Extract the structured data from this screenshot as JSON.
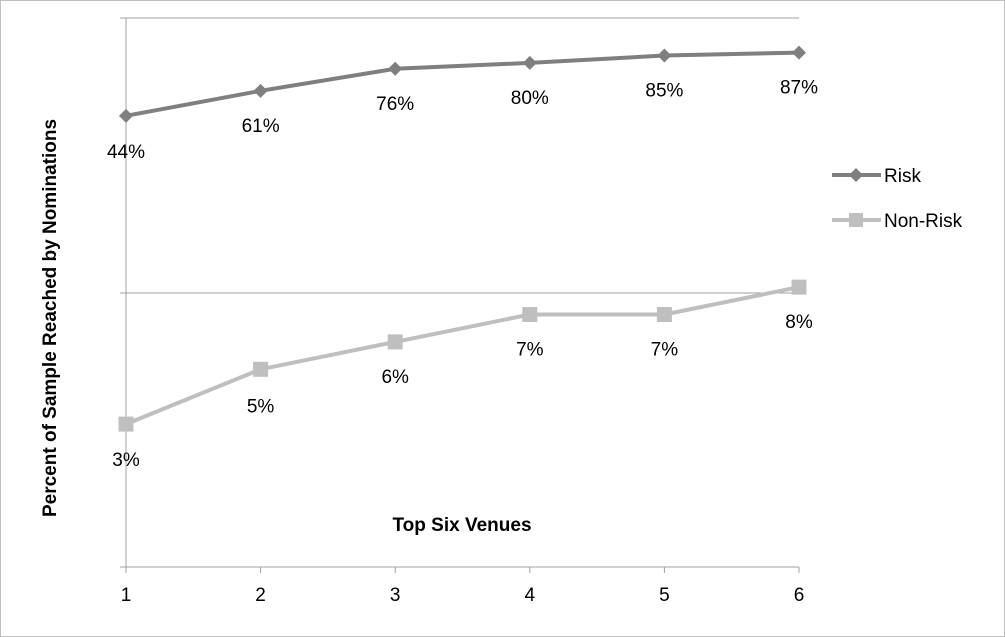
{
  "chart_data": {
    "type": "line",
    "title": "",
    "xlabel": "Top Six Venues",
    "ylabel": "Percent of Sample Reached by Nominations",
    "categories": [
      "1",
      "2",
      "3",
      "4",
      "5",
      "6"
    ],
    "series": [
      {
        "name": "Risk",
        "values": [
          44,
          61,
          76,
          80,
          85,
          87
        ],
        "labels": [
          "44%",
          "61%",
          "76%",
          "80%",
          "85%",
          "87%"
        ],
        "color": "#7f7f7f",
        "marker": "diamond"
      },
      {
        "name": "Non-Risk",
        "values": [
          3,
          5,
          6,
          7,
          7,
          8
        ],
        "labels": [
          "3%",
          "5%",
          "6%",
          "7%",
          "7%",
          "8%"
        ],
        "color": "#bfbfbf",
        "marker": "square"
      }
    ],
    "legend": "right",
    "grid": true
  }
}
